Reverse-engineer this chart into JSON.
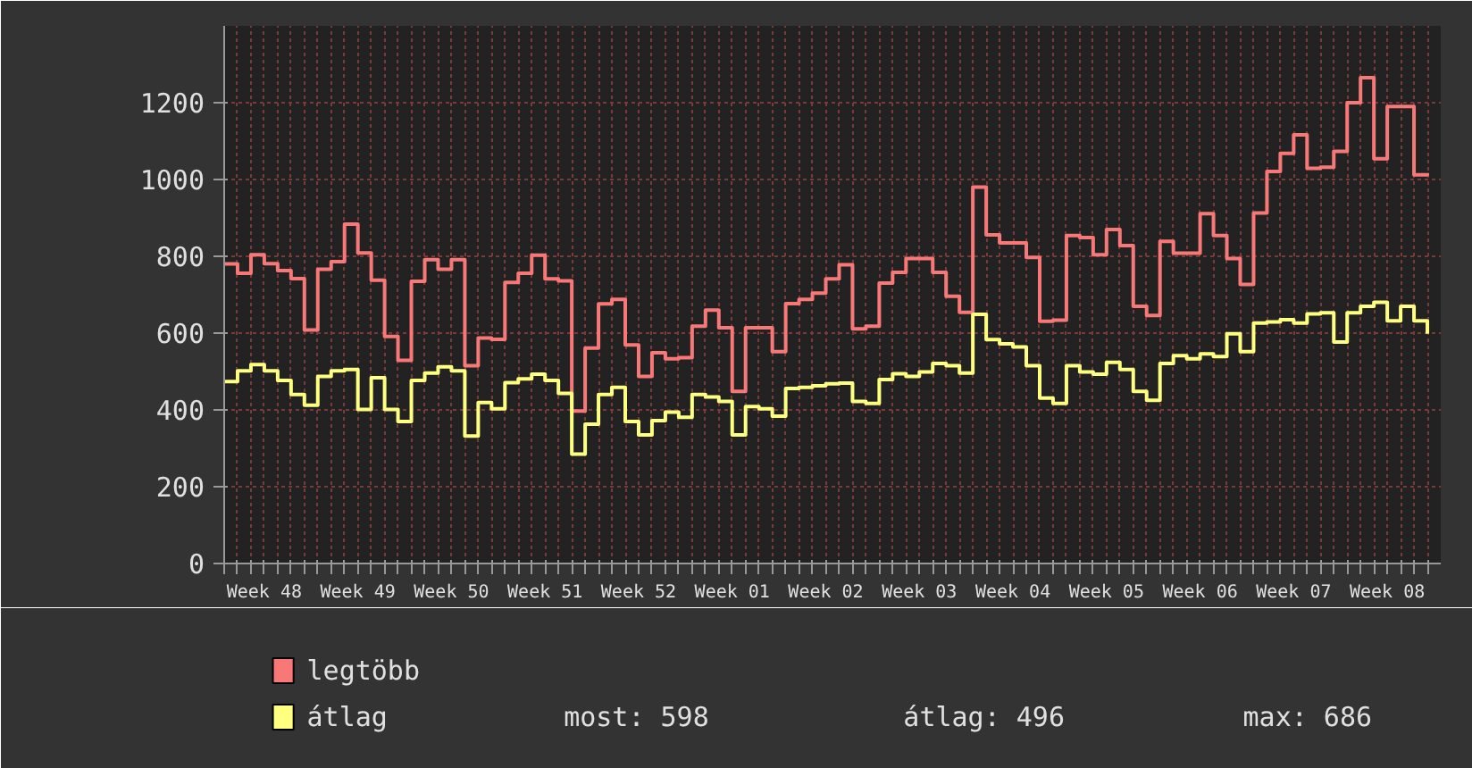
{
  "chart_data": {
    "type": "step",
    "categories": [
      null,
      null,
      null,
      "Week 48",
      null,
      null,
      null,
      null,
      null,
      null,
      "Week 49",
      null,
      null,
      null,
      null,
      null,
      null,
      "Week 50",
      null,
      null,
      null,
      null,
      null,
      null,
      "Week 51",
      null,
      null,
      null,
      null,
      null,
      null,
      "Week 52",
      null,
      null,
      null,
      null,
      null,
      null,
      "Week 01",
      null,
      null,
      null,
      null,
      null,
      null,
      "Week 02",
      null,
      null,
      null,
      null,
      null,
      null,
      "Week 03",
      null,
      null,
      null,
      null,
      null,
      null,
      "Week 04",
      null,
      null,
      null,
      null,
      null,
      null,
      "Week 05",
      null,
      null,
      null,
      null,
      null,
      null,
      "Week 06",
      null,
      null,
      null,
      null,
      null,
      null,
      "Week 07",
      null,
      null,
      null,
      null,
      null,
      null,
      "Week 08",
      null,
      null,
      null
    ],
    "series": [
      {
        "name": "legtöbb",
        "color": "#f87878",
        "values": [
          780,
          756,
          804,
          781,
          763,
          742,
          608,
          766,
          786,
          884,
          809,
          738,
          591,
          529,
          735,
          791,
          766,
          791,
          515,
          587,
          584,
          732,
          756,
          803,
          741,
          736,
          397,
          561,
          676,
          688,
          569,
          487,
          549,
          533,
          536,
          618,
          660,
          614,
          448,
          614,
          614,
          552,
          677,
          688,
          704,
          741,
          778,
          611,
          618,
          730,
          758,
          794,
          794,
          758,
          696,
          654,
          980,
          856,
          835,
          835,
          797,
          631,
          634,
          854,
          849,
          804,
          870,
          828,
          670,
          646,
          839,
          808,
          808,
          911,
          854,
          794,
          727,
          913,
          1021,
          1068,
          1116,
          1029,
          1032,
          1073,
          1200,
          1265,
          1054,
          1190,
          1190,
          1012,
          1017
        ]
      },
      {
        "name": "átlag",
        "color": "#ffff80",
        "values": [
          474,
          502,
          518,
          502,
          477,
          440,
          412,
          487,
          502,
          505,
          401,
          484,
          401,
          370,
          477,
          496,
          512,
          502,
          332,
          419,
          403,
          471,
          481,
          493,
          477,
          443,
          285,
          363,
          440,
          459,
          370,
          335,
          372,
          394,
          381,
          440,
          434,
          422,
          335,
          409,
          403,
          384,
          456,
          459,
          463,
          468,
          470,
          422,
          417,
          479,
          494,
          487,
          499,
          521,
          515,
          496,
          649,
          583,
          572,
          564,
          515,
          431,
          417,
          515,
          499,
          493,
          524,
          505,
          448,
          425,
          521,
          541,
          533,
          546,
          539,
          598,
          552,
          626,
          629,
          635,
          626,
          650,
          653,
          577,
          653,
          670,
          680,
          632,
          670,
          632,
          598
        ]
      }
    ],
    "ylim": [
      0,
      1400
    ],
    "yticks": [
      0,
      200,
      400,
      600,
      800,
      1000,
      1200
    ],
    "grid": true,
    "legend": "bottom",
    "annotations": [
      "most: 598",
      "átlag: 496",
      "max: 686"
    ]
  }
}
